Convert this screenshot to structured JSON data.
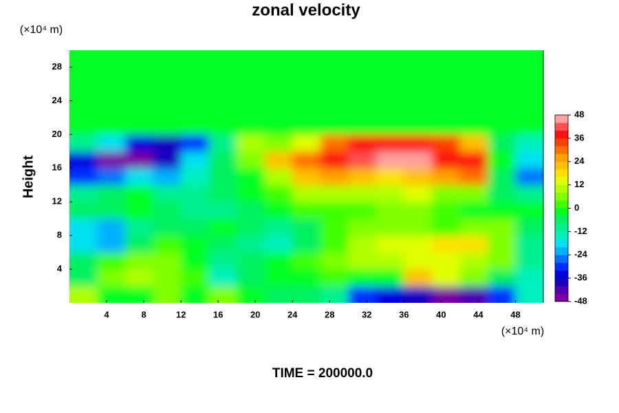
{
  "chart_data": {
    "type": "contour",
    "title": "zonal velocity",
    "ylabel": "Height",
    "xunit": "(×10⁴ m)",
    "yunit": "(×10⁴ m)",
    "footer": "TIME = 200000.0",
    "xlim": [
      0,
      51
    ],
    "ylim": [
      0,
      30
    ],
    "xticks": [
      4,
      8,
      12,
      16,
      20,
      24,
      28,
      32,
      36,
      40,
      44,
      48
    ],
    "yticks": [
      4,
      8,
      12,
      16,
      20,
      24,
      28
    ],
    "x": [
      1.5,
      4.5,
      7.5,
      10.5,
      13.5,
      16.5,
      19.5,
      22.5,
      25.5,
      28.5,
      31.5,
      34.5,
      37.5,
      40.5,
      43.5,
      46.5,
      49.5
    ],
    "y": [
      1,
      3,
      5,
      7,
      9,
      11,
      13,
      15,
      17,
      19,
      21,
      23,
      25,
      27,
      29
    ],
    "z": [
      [
        10,
        -4,
        -2,
        4,
        -4,
        4,
        -4,
        -6,
        -8,
        -10,
        -30,
        -36,
        -40,
        -48,
        -44,
        -30,
        -14
      ],
      [
        -6,
        6,
        10,
        6,
        2,
        -16,
        -8,
        -4,
        -4,
        0,
        -4,
        -2,
        20,
        12,
        6,
        -8,
        -14
      ],
      [
        -8,
        2,
        4,
        6,
        -2,
        -12,
        -6,
        -4,
        2,
        4,
        8,
        10,
        12,
        14,
        10,
        6,
        -12
      ],
      [
        -20,
        -24,
        -8,
        2,
        -2,
        -8,
        -12,
        -16,
        -8,
        2,
        10,
        12,
        14,
        18,
        16,
        6,
        -10
      ],
      [
        -18,
        -22,
        -10,
        -6,
        -6,
        -2,
        -8,
        -12,
        -8,
        0,
        6,
        4,
        4,
        2,
        4,
        4,
        -6
      ],
      [
        -8,
        -6,
        -4,
        -6,
        -12,
        -10,
        -6,
        -4,
        2,
        2,
        0,
        4,
        4,
        0,
        -4,
        -4,
        -2
      ],
      [
        -12,
        -8,
        -4,
        -10,
        -10,
        -8,
        -4,
        0,
        8,
        10,
        8,
        10,
        12,
        6,
        4,
        -6,
        -10
      ],
      [
        -30,
        -28,
        -18,
        -22,
        -14,
        -6,
        -2,
        10,
        20,
        24,
        22,
        18,
        22,
        26,
        30,
        -6,
        -26
      ],
      [
        -36,
        -46,
        -46,
        -38,
        -20,
        -8,
        6,
        20,
        28,
        36,
        42,
        48,
        46,
        38,
        36,
        -2,
        -20
      ],
      [
        -10,
        -20,
        -36,
        -40,
        -30,
        -10,
        10,
        6,
        14,
        30,
        36,
        38,
        38,
        34,
        20,
        -6,
        -14
      ],
      [
        -2,
        -2,
        -2,
        -2,
        -2,
        -2,
        -2,
        -2,
        -2,
        -2,
        -2,
        -2,
        -2,
        -2,
        -2,
        -2,
        -2
      ],
      [
        -2,
        -2,
        -2,
        -2,
        -2,
        -2,
        -2,
        -2,
        -2,
        -2,
        -2,
        -2,
        -2,
        -2,
        -2,
        -2,
        -2
      ],
      [
        -2,
        -2,
        -2,
        -2,
        -2,
        -2,
        -2,
        -2,
        -2,
        -2,
        -2,
        -2,
        -2,
        -2,
        -2,
        -2,
        -2
      ],
      [
        -2,
        -2,
        -2,
        -2,
        -2,
        -2,
        -2,
        -2,
        -2,
        -2,
        -2,
        -2,
        -2,
        -2,
        -2,
        -2,
        -2
      ],
      [
        -2,
        -2,
        -2,
        -2,
        -2,
        -2,
        -2,
        -2,
        -2,
        -2,
        -2,
        -2,
        -2,
        -2,
        -2,
        -2,
        -2
      ]
    ],
    "clim": [
      -48,
      48
    ],
    "colorbar_ticks": [
      -48,
      -36,
      -24,
      -12,
      0,
      12,
      24,
      36,
      48
    ],
    "colors": [
      "#7a00a0",
      "#5000b0",
      "#1800c0",
      "#0000e0",
      "#0030ff",
      "#0070ff",
      "#00b0ff",
      "#00e0f0",
      "#00f0c0",
      "#00f090",
      "#00f060",
      "#00ff20",
      "#40ff00",
      "#80ff00",
      "#b0ff00",
      "#e0ff00",
      "#ffe000",
      "#ffc000",
      "#ffa000",
      "#ff7000",
      "#ff4000",
      "#ff1010",
      "#ff5050",
      "#ffa0a0"
    ]
  }
}
